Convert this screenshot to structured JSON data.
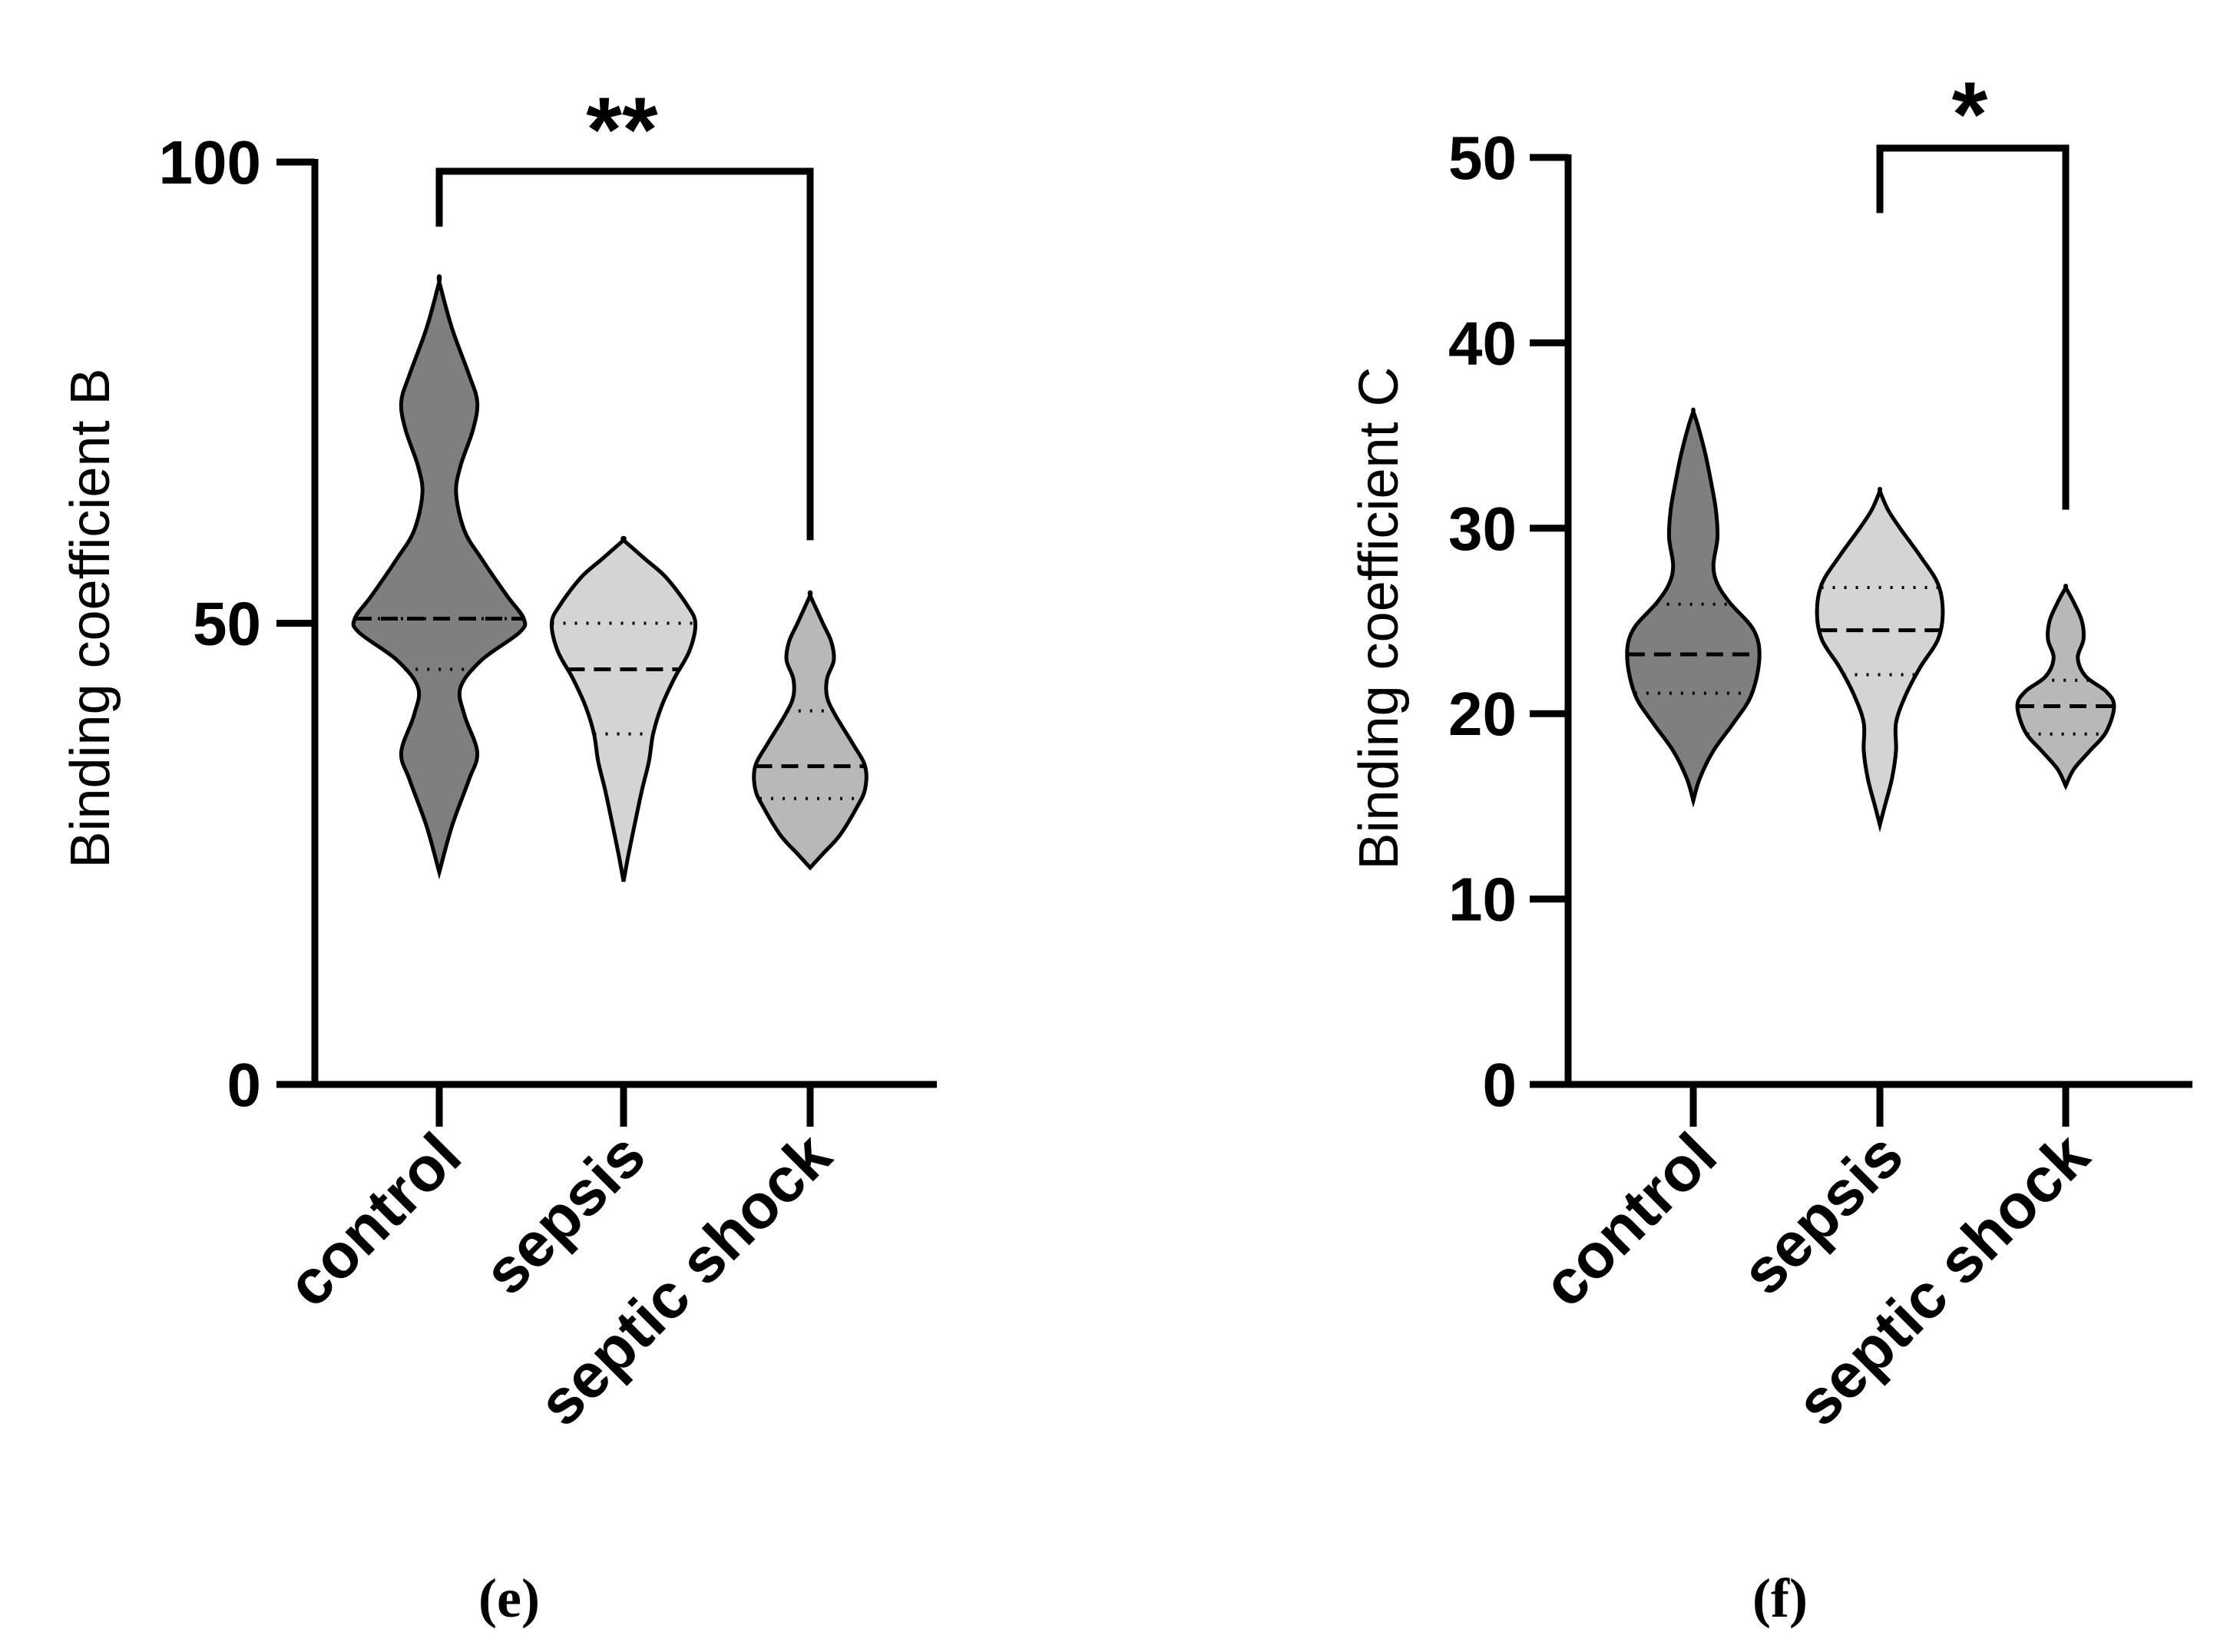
{
  "chart_data": [
    {
      "type": "violin",
      "panel_label": "(e)",
      "ylabel": "Binding coefficient B",
      "ylim": [
        0,
        100
      ],
      "yticks": [
        0,
        50,
        100
      ],
      "categories": [
        "control",
        "sepsis",
        "septic shock"
      ],
      "colors": [
        "#7f7f7f",
        "#d4d4d4",
        "#b8b8b8"
      ],
      "violins": [
        {
          "name": "control",
          "min": 23,
          "max": 87,
          "median": 50.5,
          "q1": 45,
          "q3": 50.5,
          "profile": [
            [
              23,
              0
            ],
            [
              28,
              0.15
            ],
            [
              33,
              0.35
            ],
            [
              36,
              0.45
            ],
            [
              40,
              0.3
            ],
            [
              43,
              0.25
            ],
            [
              46,
              0.5
            ],
            [
              49,
              0.95
            ],
            [
              50.5,
              1.0
            ],
            [
              53,
              0.8
            ],
            [
              57,
              0.5
            ],
            [
              60,
              0.3
            ],
            [
              64,
              0.2
            ],
            [
              67,
              0.25
            ],
            [
              71,
              0.4
            ],
            [
              74,
              0.45
            ],
            [
              77,
              0.35
            ],
            [
              82,
              0.15
            ],
            [
              87,
              0
            ]
          ]
        },
        {
          "name": "sepsis",
          "min": 22,
          "max": 59,
          "median": 45,
          "q1": 38,
          "q3": 50,
          "profile": [
            [
              22,
              0
            ],
            [
              25,
              0.06
            ],
            [
              29,
              0.15
            ],
            [
              32,
              0.22
            ],
            [
              35,
              0.3
            ],
            [
              38,
              0.35
            ],
            [
              41,
              0.45
            ],
            [
              44,
              0.6
            ],
            [
              47,
              0.78
            ],
            [
              50,
              0.85
            ],
            [
              52,
              0.75
            ],
            [
              55,
              0.5
            ],
            [
              57,
              0.25
            ],
            [
              59,
              0
            ]
          ]
        },
        {
          "name": "septic shock",
          "min": 23.5,
          "max": 53,
          "median": 34.5,
          "q1": 31,
          "q3": 40.5,
          "profile": [
            [
              23.5,
              0
            ],
            [
              25,
              0.15
            ],
            [
              27,
              0.35
            ],
            [
              30,
              0.55
            ],
            [
              32,
              0.65
            ],
            [
              34.5,
              0.65
            ],
            [
              37,
              0.5
            ],
            [
              40,
              0.3
            ],
            [
              42,
              0.2
            ],
            [
              44,
              0.2
            ],
            [
              46,
              0.28
            ],
            [
              48,
              0.25
            ],
            [
              50,
              0.15
            ],
            [
              53,
              0
            ]
          ]
        }
      ],
      "significance": {
        "from": "control",
        "to": "septic shock",
        "label": "**",
        "bracket_y": 99,
        "left_end": 93,
        "right_end": 59
      }
    },
    {
      "type": "violin",
      "panel_label": "(f)",
      "ylabel": "Binding coefficient C",
      "ylim": [
        0,
        50
      ],
      "yticks": [
        0,
        10,
        20,
        30,
        40,
        50
      ],
      "categories": [
        "control",
        "sepsis",
        "septic shock"
      ],
      "colors": [
        "#7f7f7f",
        "#d4d4d4",
        "#b8b8b8"
      ],
      "violins": [
        {
          "name": "control",
          "min": 15.3,
          "max": 36.3,
          "median": 23.2,
          "q1": 21.1,
          "q3": 25.9,
          "profile": [
            [
              15.3,
              0
            ],
            [
              16.5,
              0.08
            ],
            [
              18,
              0.25
            ],
            [
              19.5,
              0.5
            ],
            [
              21,
              0.72
            ],
            [
              23,
              0.82
            ],
            [
              24.5,
              0.75
            ],
            [
              26,
              0.45
            ],
            [
              27,
              0.3
            ],
            [
              28,
              0.25
            ],
            [
              29.5,
              0.3
            ],
            [
              31,
              0.28
            ],
            [
              32.5,
              0.22
            ],
            [
              34,
              0.15
            ],
            [
              35.5,
              0.06
            ],
            [
              36.3,
              0
            ]
          ]
        },
        {
          "name": "sepsis",
          "min": 14,
          "max": 32,
          "median": 24.5,
          "q1": 22.1,
          "q3": 26.8,
          "profile": [
            [
              14,
              0
            ],
            [
              15,
              0.06
            ],
            [
              16.5,
              0.15
            ],
            [
              18,
              0.2
            ],
            [
              19.5,
              0.2
            ],
            [
              21,
              0.32
            ],
            [
              22.5,
              0.5
            ],
            [
              24,
              0.72
            ],
            [
              25.5,
              0.78
            ],
            [
              27,
              0.72
            ],
            [
              28.5,
              0.5
            ],
            [
              30,
              0.25
            ],
            [
              31,
              0.1
            ],
            [
              32,
              0
            ]
          ]
        },
        {
          "name": "septic shock",
          "min": 16.1,
          "max": 26.8,
          "median": 20.4,
          "q1": 18.9,
          "q3": 21.8,
          "profile": [
            [
              16.1,
              0
            ],
            [
              17,
              0.1
            ],
            [
              18,
              0.3
            ],
            [
              19,
              0.5
            ],
            [
              20.4,
              0.6
            ],
            [
              21.2,
              0.5
            ],
            [
              22,
              0.25
            ],
            [
              23,
              0.15
            ],
            [
              24,
              0.22
            ],
            [
              25,
              0.2
            ],
            [
              26,
              0.1
            ],
            [
              26.8,
              0
            ]
          ]
        }
      ],
      "significance": {
        "from": "sepsis",
        "to": "septic shock",
        "label": "*",
        "bracket_y": 50.5,
        "left_end": 47,
        "right_end": 31
      }
    }
  ]
}
